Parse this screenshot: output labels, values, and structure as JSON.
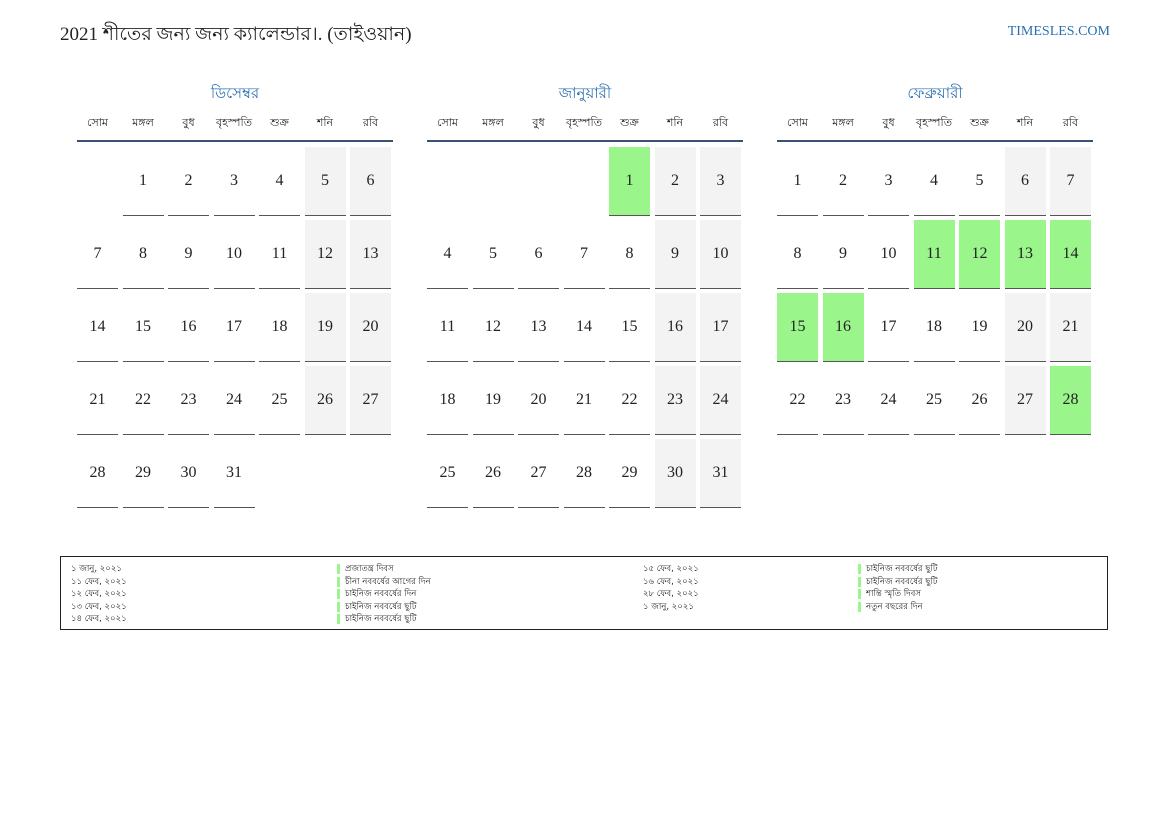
{
  "header": {
    "title": "2021 শীতের জন্য জন্য ক্যালেন্ডার।. (তাইওয়ান)",
    "site": "TIMESLES.COM"
  },
  "colors": {
    "accent": "#2a6fb0",
    "holiday": "#9af58a",
    "weekend": "#f3f3f3",
    "rule": "#3b5172"
  },
  "weekdays": [
    "সোম",
    "মঙ্গল",
    "বুধ",
    "বৃহস্পতি",
    "শুক্র",
    "শনি",
    "রবি"
  ],
  "months": [
    {
      "name": "ডিসেম্বর",
      "offset": 1,
      "days": 31,
      "holidays": []
    },
    {
      "name": "জানুয়ারী",
      "offset": 4,
      "days": 31,
      "holidays": [
        1
      ]
    },
    {
      "name": "ফেব্রুয়ারী",
      "offset": 0,
      "days": 28,
      "holidays": [
        11,
        12,
        13,
        14,
        15,
        16,
        28
      ]
    }
  ],
  "legend": {
    "left": [
      {
        "date": "১ জানু, ২০২১",
        "name": "প্রজাতন্ত্র দিবস"
      },
      {
        "date": "১১ ফেব, ২০২১",
        "name": "চীনা নববর্ষের আগের দিন"
      },
      {
        "date": "১২ ফেব, ২০২১",
        "name": "চাইনিজ নববর্ষের দিন"
      },
      {
        "date": "১৩ ফেব, ২০২১",
        "name": "চাইনিজ নববর্ষের ছুটি"
      },
      {
        "date": "১৪ ফেব, ২০২১",
        "name": "চাইনিজ নববর্ষের ছুটি"
      }
    ],
    "right": [
      {
        "date": "১৫ ফেব, ২০২১",
        "name": "চাইনিজ নববর্ষের ছুটি"
      },
      {
        "date": "১৬ ফেব, ২০২১",
        "name": "চাইনিজ নববর্ষের ছুটি"
      },
      {
        "date": "২৮ ফেব, ২০২১",
        "name": "শান্তি স্মৃতি দিবস"
      },
      {
        "date": "১ জানু, ২০২১",
        "name": "নতুন বছরের দিন"
      }
    ]
  }
}
